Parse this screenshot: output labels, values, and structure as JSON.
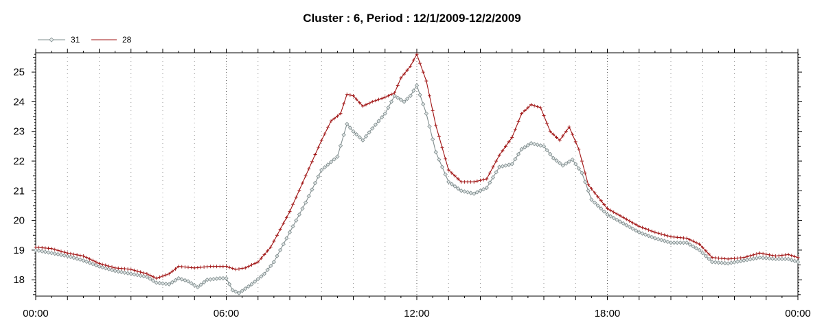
{
  "chart_data": {
    "type": "line",
    "title": "Cluster : 6, Period : 12/1/2009-12/2/2009",
    "xlabel": "",
    "ylabel": "",
    "x_tick_labels": [
      "00:00",
      "06:00",
      "12:00",
      "18:00",
      "00:00"
    ],
    "x_ticks_hours": [
      0,
      6,
      12,
      18,
      24
    ],
    "xlim_hours": [
      0,
      24
    ],
    "y_ticks": [
      18,
      19,
      20,
      21,
      22,
      23,
      24,
      25
    ],
    "ylim": [
      17.45,
      25.65
    ],
    "grid": true,
    "legend_position": "top-left",
    "series": [
      {
        "name": "31",
        "color": "#7f8c8d",
        "marker": "diamond",
        "points": [
          [
            0.0,
            19.0
          ],
          [
            0.5,
            18.9
          ],
          [
            1.0,
            18.8
          ],
          [
            1.5,
            18.65
          ],
          [
            2.0,
            18.45
          ],
          [
            2.5,
            18.3
          ],
          [
            3.0,
            18.2
          ],
          [
            3.5,
            18.1
          ],
          [
            3.8,
            17.9
          ],
          [
            4.2,
            17.85
          ],
          [
            4.5,
            18.05
          ],
          [
            4.8,
            17.95
          ],
          [
            5.1,
            17.75
          ],
          [
            5.4,
            18.0
          ],
          [
            5.8,
            18.05
          ],
          [
            6.0,
            18.05
          ],
          [
            6.2,
            17.65
          ],
          [
            6.4,
            17.55
          ],
          [
            6.8,
            17.85
          ],
          [
            7.2,
            18.2
          ],
          [
            7.5,
            18.6
          ],
          [
            8.0,
            19.6
          ],
          [
            8.5,
            20.6
          ],
          [
            9.0,
            21.7
          ],
          [
            9.5,
            22.15
          ],
          [
            9.8,
            23.25
          ],
          [
            10.0,
            23.0
          ],
          [
            10.3,
            22.7
          ],
          [
            10.6,
            23.1
          ],
          [
            11.0,
            23.6
          ],
          [
            11.3,
            24.2
          ],
          [
            11.6,
            24.0
          ],
          [
            11.8,
            24.2
          ],
          [
            12.0,
            24.55
          ],
          [
            12.3,
            23.6
          ],
          [
            12.6,
            22.3
          ],
          [
            13.0,
            21.3
          ],
          [
            13.4,
            21.0
          ],
          [
            13.8,
            20.9
          ],
          [
            14.2,
            21.1
          ],
          [
            14.6,
            21.8
          ],
          [
            15.0,
            21.9
          ],
          [
            15.3,
            22.4
          ],
          [
            15.6,
            22.6
          ],
          [
            16.0,
            22.5
          ],
          [
            16.3,
            22.1
          ],
          [
            16.6,
            21.85
          ],
          [
            16.9,
            22.05
          ],
          [
            17.2,
            21.6
          ],
          [
            17.5,
            20.7
          ],
          [
            18.0,
            20.2
          ],
          [
            18.5,
            19.9
          ],
          [
            19.0,
            19.6
          ],
          [
            19.5,
            19.4
          ],
          [
            20.0,
            19.25
          ],
          [
            20.5,
            19.25
          ],
          [
            20.9,
            19.0
          ],
          [
            21.3,
            18.6
          ],
          [
            21.8,
            18.55
          ],
          [
            22.3,
            18.65
          ],
          [
            22.8,
            18.75
          ],
          [
            23.3,
            18.7
          ],
          [
            23.7,
            18.7
          ],
          [
            24.0,
            18.6
          ]
        ]
      },
      {
        "name": "28",
        "color": "#a01414",
        "marker": "plus",
        "points": [
          [
            0.0,
            19.1
          ],
          [
            0.5,
            19.05
          ],
          [
            1.0,
            18.9
          ],
          [
            1.5,
            18.8
          ],
          [
            2.0,
            18.55
          ],
          [
            2.5,
            18.4
          ],
          [
            3.0,
            18.35
          ],
          [
            3.5,
            18.2
          ],
          [
            3.8,
            18.05
          ],
          [
            4.2,
            18.2
          ],
          [
            4.5,
            18.45
          ],
          [
            5.0,
            18.4
          ],
          [
            5.5,
            18.45
          ],
          [
            6.0,
            18.45
          ],
          [
            6.3,
            18.35
          ],
          [
            6.6,
            18.4
          ],
          [
            7.0,
            18.6
          ],
          [
            7.4,
            19.1
          ],
          [
            8.0,
            20.3
          ],
          [
            8.5,
            21.5
          ],
          [
            9.0,
            22.7
          ],
          [
            9.3,
            23.35
          ],
          [
            9.6,
            23.6
          ],
          [
            9.8,
            24.25
          ],
          [
            10.0,
            24.2
          ],
          [
            10.3,
            23.85
          ],
          [
            10.6,
            24.0
          ],
          [
            11.0,
            24.15
          ],
          [
            11.3,
            24.3
          ],
          [
            11.5,
            24.8
          ],
          [
            11.8,
            25.2
          ],
          [
            12.0,
            25.6
          ],
          [
            12.3,
            24.7
          ],
          [
            12.6,
            23.2
          ],
          [
            13.0,
            21.7
          ],
          [
            13.4,
            21.3
          ],
          [
            13.8,
            21.3
          ],
          [
            14.2,
            21.4
          ],
          [
            14.6,
            22.2
          ],
          [
            15.0,
            22.8
          ],
          [
            15.3,
            23.6
          ],
          [
            15.6,
            23.9
          ],
          [
            15.9,
            23.8
          ],
          [
            16.2,
            23.0
          ],
          [
            16.5,
            22.7
          ],
          [
            16.8,
            23.15
          ],
          [
            17.1,
            22.4
          ],
          [
            17.4,
            21.2
          ],
          [
            18.0,
            20.4
          ],
          [
            18.5,
            20.1
          ],
          [
            19.0,
            19.8
          ],
          [
            19.5,
            19.6
          ],
          [
            20.0,
            19.45
          ],
          [
            20.5,
            19.4
          ],
          [
            20.9,
            19.2
          ],
          [
            21.3,
            18.75
          ],
          [
            21.8,
            18.7
          ],
          [
            22.3,
            18.75
          ],
          [
            22.8,
            18.9
          ],
          [
            23.3,
            18.8
          ],
          [
            23.7,
            18.85
          ],
          [
            24.0,
            18.75
          ]
        ]
      }
    ]
  }
}
